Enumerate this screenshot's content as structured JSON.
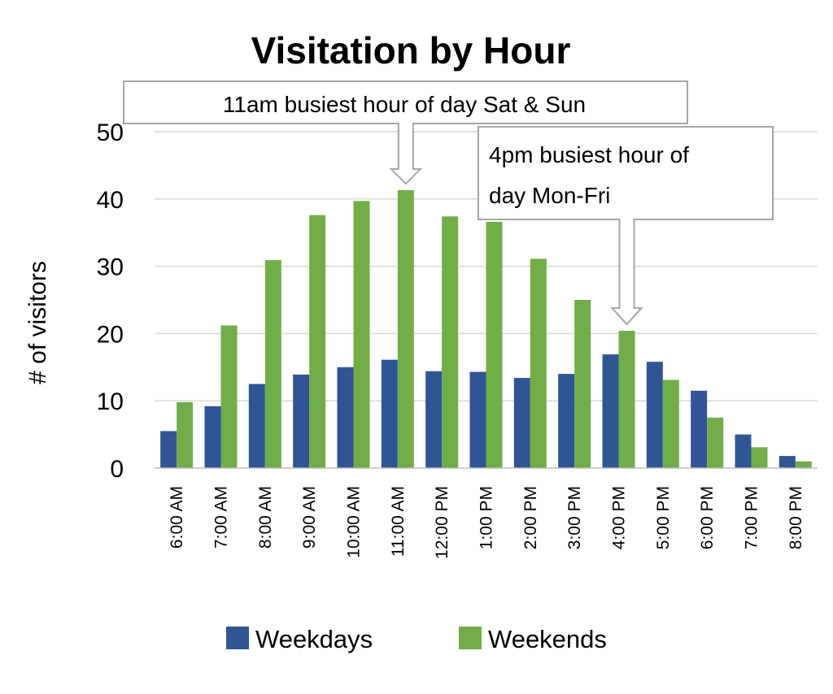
{
  "chart_data": {
    "type": "bar",
    "title": "Visitation by Hour",
    "xlabel": "",
    "ylabel": "# of visitors",
    "ylim": [
      0,
      50
    ],
    "yticks": [
      "0",
      "10",
      "20",
      "30",
      "40",
      "50"
    ],
    "grid": true,
    "legend_position": "bottom",
    "categories": [
      "6:00 AM",
      "7:00 AM",
      "8:00 AM",
      "9:00 AM",
      "10:00 AM",
      "11:00 AM",
      "12:00 PM",
      "1:00 PM",
      "2:00 PM",
      "3:00 PM",
      "4:00 PM",
      "5:00 PM",
      "6:00 PM",
      "7:00 PM",
      "8:00 PM"
    ],
    "series": [
      {
        "name": "Weekdays",
        "color": "#2f5597",
        "values": [
          5.5,
          9.2,
          12.5,
          13.9,
          15.0,
          16.1,
          14.4,
          14.3,
          13.4,
          14.0,
          16.9,
          15.8,
          11.5,
          5.0,
          1.8
        ]
      },
      {
        "name": "Weekends",
        "color": "#70ad47",
        "values": [
          9.8,
          21.2,
          30.9,
          37.6,
          39.7,
          41.3,
          37.4,
          36.6,
          31.1,
          25.0,
          20.4,
          13.1,
          7.5,
          3.1,
          1.0
        ]
      }
    ],
    "annotations": [
      {
        "text": "11am busiest hour of day Sat & Sun",
        "category": "11:00 AM",
        "series": "Weekends"
      },
      {
        "text_lines": [
          "4pm busiest hour of",
          "day Mon-Fri"
        ],
        "category": "4:00 PM",
        "series": "Weekends"
      }
    ]
  }
}
